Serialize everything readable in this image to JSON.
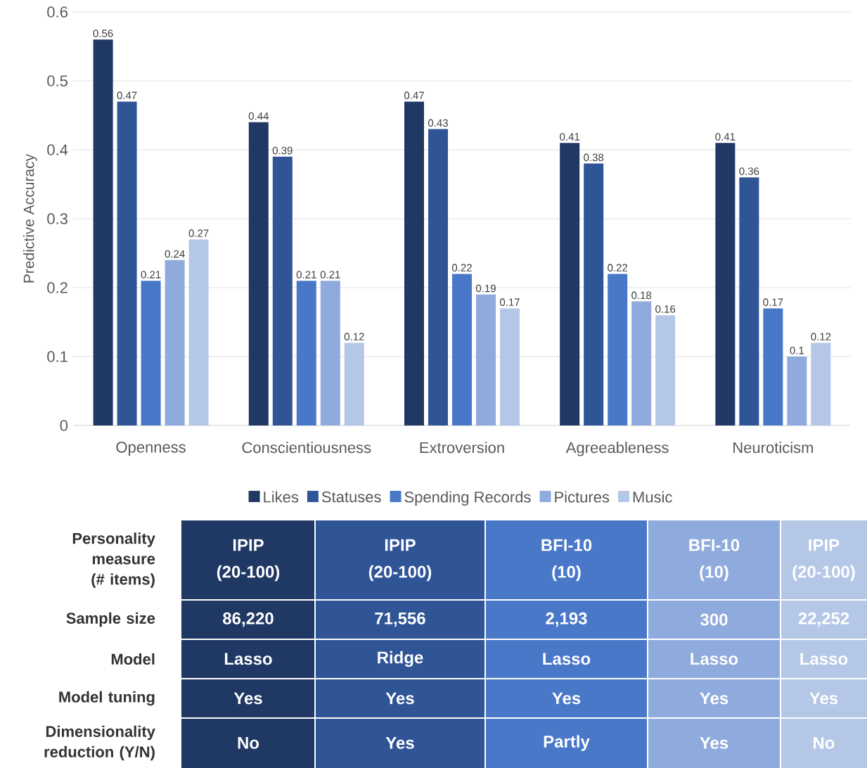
{
  "chart_data": [
    {
      "type": "bar",
      "ylabel": "Predictive Accuracy",
      "categories": [
        "Openness",
        "Conscientiousness",
        "Extroversion",
        "Agreeableness",
        "Neuroticism"
      ],
      "series": [
        {
          "name": "Likes",
          "color": "#1f3864",
          "values": [
            0.56,
            0.44,
            0.47,
            0.41,
            0.41
          ]
        },
        {
          "name": "Statuses",
          "color": "#2f5597",
          "values": [
            0.47,
            0.39,
            0.43,
            0.38,
            0.36
          ]
        },
        {
          "name": "Spending Records",
          "color": "#4a78c8",
          "values": [
            0.21,
            0.21,
            0.22,
            0.22,
            0.17
          ]
        },
        {
          "name": "Pictures",
          "color": "#8faadc",
          "values": [
            0.24,
            0.21,
            0.19,
            0.18,
            0.1
          ]
        },
        {
          "name": "Music",
          "color": "#b4c7e7",
          "values": [
            0.27,
            0.12,
            0.17,
            0.16,
            0.12
          ]
        }
      ],
      "ylim": [
        0,
        0.6
      ],
      "yticks": [
        0,
        0.1,
        0.2,
        0.3,
        0.4,
        0.5,
        0.6
      ],
      "grid": "y",
      "legend": "bottom",
      "data_labels": true
    },
    {
      "type": "other",
      "categories": [
        null,
        null,
        null,
        null,
        null
      ],
      "y_categories": [
        "Personality measure (# items)",
        "Sample size",
        "Model",
        "Model tuning",
        "Dimensionality reduction (Y/N)"
      ],
      "cell_labels": [
        [
          "IPIP (20-100)",
          "IPIP (20-100)",
          "BFI-10 (10)",
          "BFI-10 (10)",
          "IPIP (20-100)"
        ],
        [
          "86,220",
          "71,556",
          "2,193",
          "300",
          "22,252"
        ],
        [
          "Lasso",
          "Ridge",
          "Lasso",
          "Lasso",
          "Lasso"
        ],
        [
          "Yes",
          "Yes",
          "Yes",
          "Yes",
          "Yes"
        ],
        [
          "No",
          "Yes",
          "Partly",
          "Yes",
          "No"
        ]
      ],
      "colors": [
        "#1f3864",
        "#2f5597",
        "#4a78c8",
        "#8faadc",
        "#b4c7e7"
      ]
    }
  ]
}
